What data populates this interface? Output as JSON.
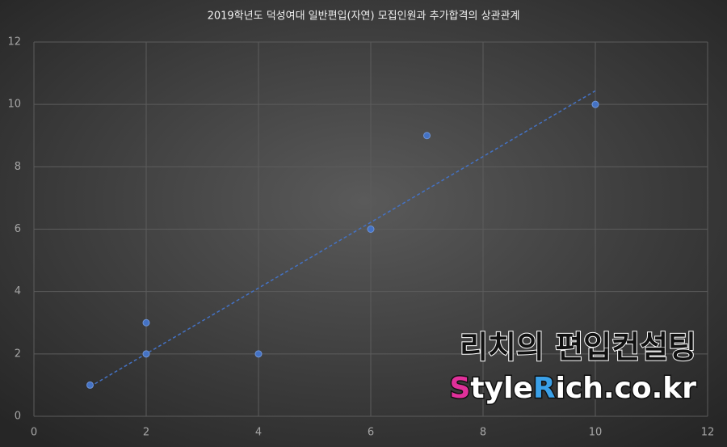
{
  "chart_data": {
    "type": "scatter",
    "title": "2019학년도 덕성여대 일반편입(자연) 모집인원과 추가합격의 상관관계",
    "series": [
      {
        "color": "#4472c4",
        "x": [
          1,
          2,
          2,
          4,
          6,
          7,
          10
        ],
        "values": [
          1,
          3,
          2,
          2,
          6,
          9,
          10
        ]
      }
    ],
    "trendline": "linear",
    "xlim": [
      0,
      12
    ],
    "xticks": [
      0,
      2,
      4,
      6,
      8,
      10,
      12
    ],
    "ylim": [
      0,
      12
    ],
    "yticks": [
      0,
      2,
      4,
      6,
      8,
      10,
      12
    ],
    "grid": true
  },
  "watermark": {
    "line1": "리치의 편입컨설팅",
    "line2": [
      {
        "text": "S",
        "color": "#e0309a"
      },
      {
        "text": "tyle",
        "color": "#ffffff"
      },
      {
        "text": "R",
        "color": "#3aa0e8"
      },
      {
        "text": "ich.co.kr",
        "color": "#ffffff"
      }
    ]
  }
}
